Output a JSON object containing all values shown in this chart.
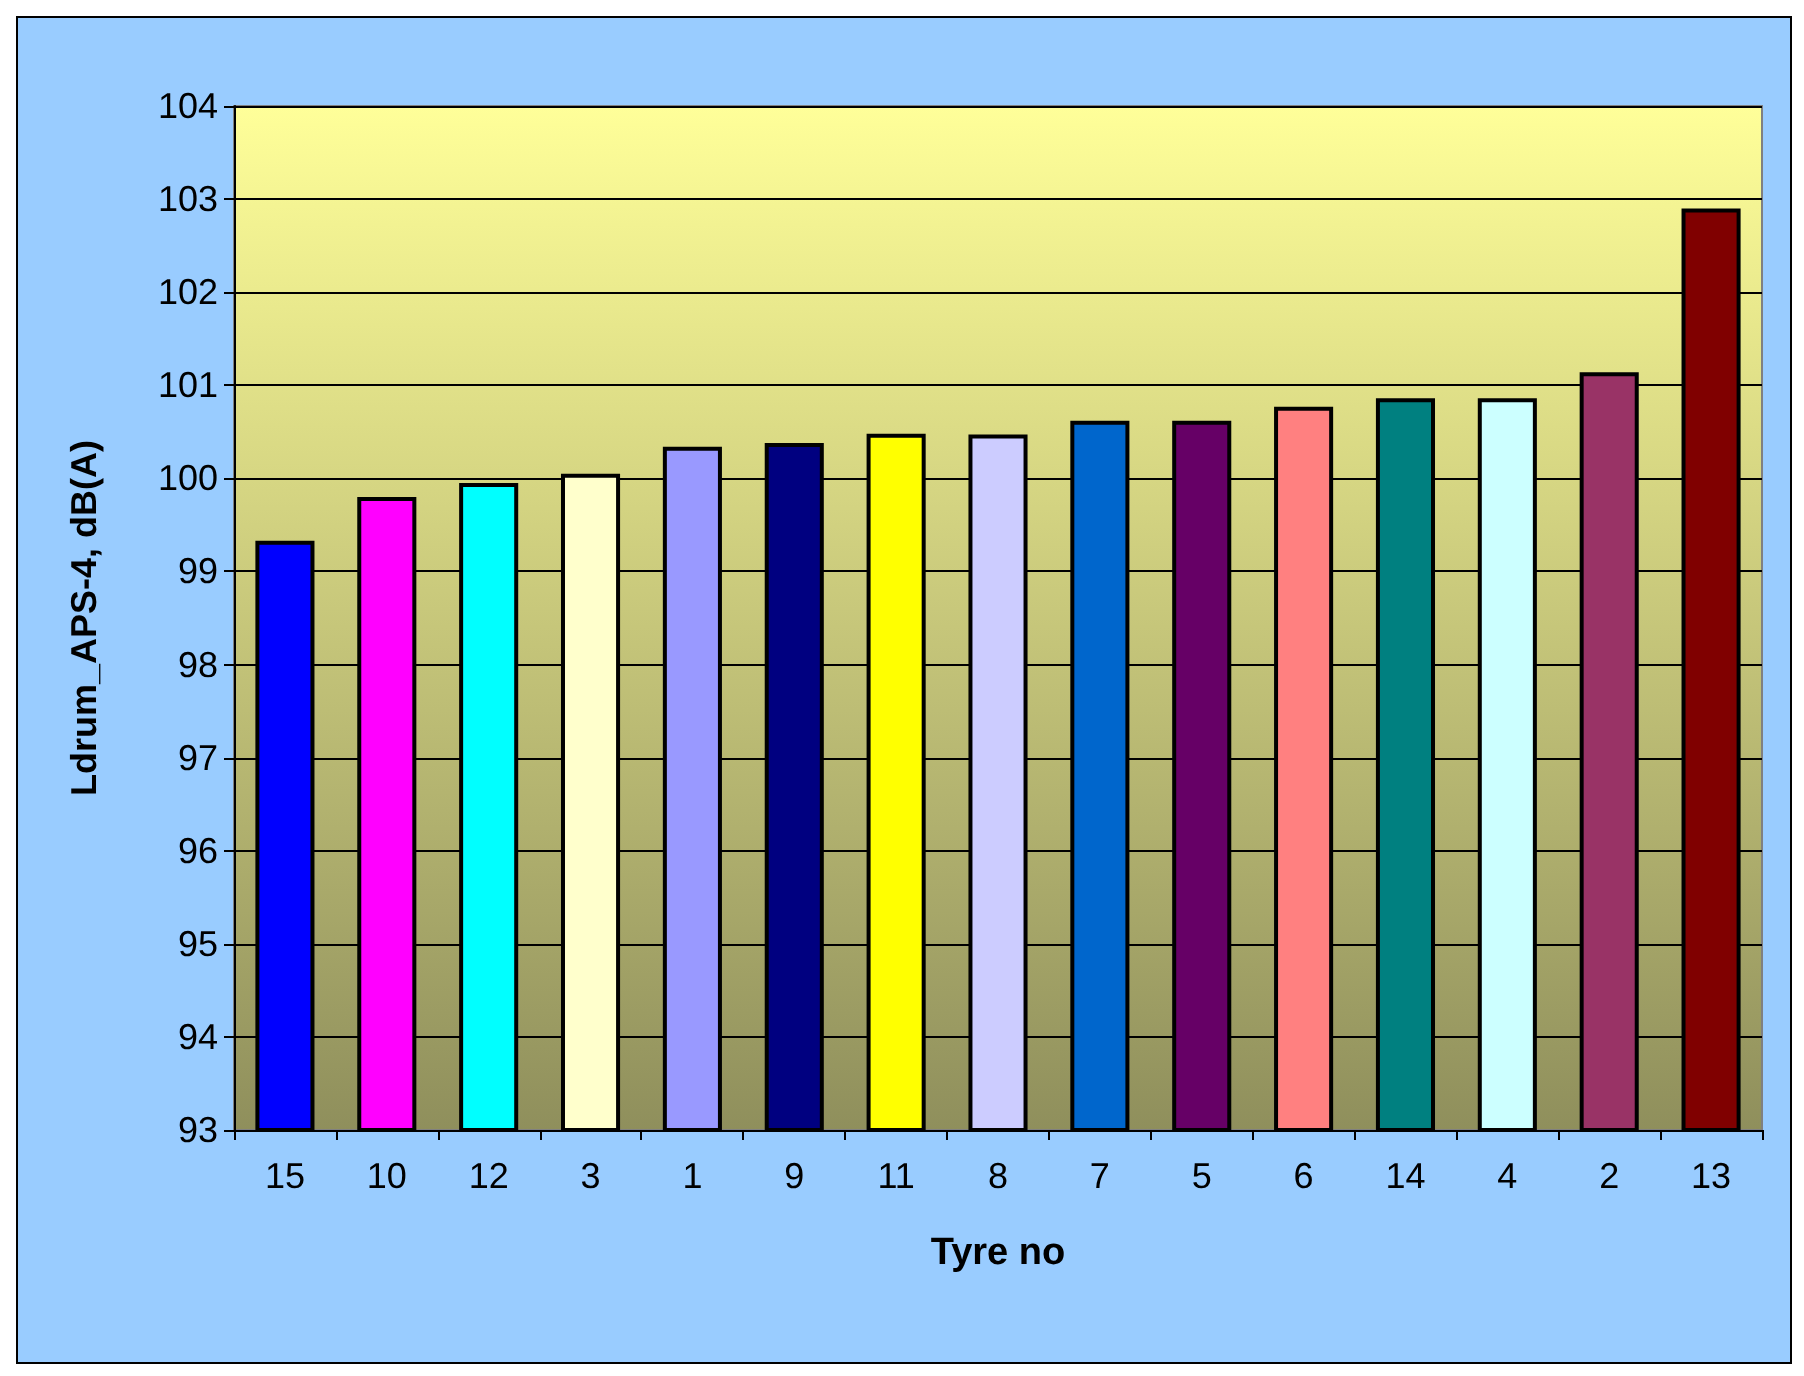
{
  "chart_data": {
    "type": "bar",
    "xlabel": "Tyre no",
    "ylabel": "Ldrum_APS-4, dB(A)",
    "categories": [
      "15",
      "10",
      "12",
      "3",
      "1",
      "9",
      "11",
      "8",
      "7",
      "5",
      "6",
      "14",
      "4",
      "2",
      "13"
    ],
    "values": [
      99.33,
      99.8,
      99.95,
      100.05,
      100.34,
      100.38,
      100.48,
      100.47,
      100.62,
      100.62,
      100.77,
      100.86,
      100.86,
      101.14,
      102.9
    ],
    "colors": [
      "#0000ff",
      "#ff00ff",
      "#00ffff",
      "#ffffcc",
      "#9999ff",
      "#000080",
      "#ffff00",
      "#ccccff",
      "#0066cc",
      "#660066",
      "#ff8080",
      "#008080",
      "#ccffff",
      "#993366",
      "#800000"
    ],
    "ylim": [
      93,
      104
    ],
    "yticks": [
      93,
      94,
      95,
      96,
      97,
      98,
      99,
      100,
      101,
      102,
      103,
      104
    ],
    "grid": "y"
  }
}
